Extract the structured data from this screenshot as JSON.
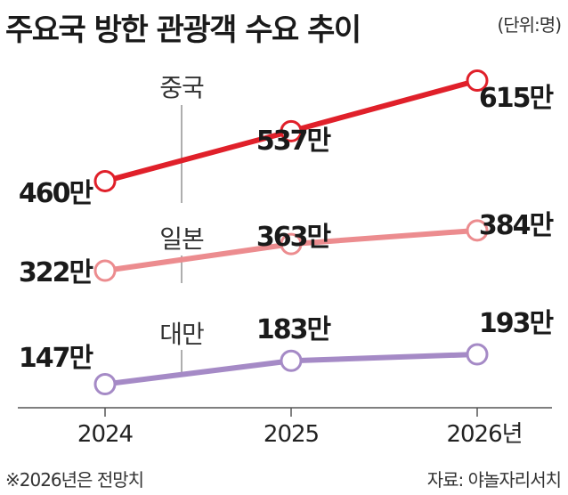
{
  "title": "주요국 방한 관광객 수요 추이",
  "unit_note": "(단위:명)",
  "footnote": "※2026년은 전망치",
  "source": "자료: 야놀자리서치",
  "colors": {
    "china": "#e0202a",
    "japan": "#ec8c8f",
    "taiwan": "#a58ac6",
    "axis": "#555555",
    "text": "#1a1a1a"
  },
  "chart_data": {
    "type": "line",
    "title": "주요국 방한 관광객 수요 추이",
    "categories": [
      "2024",
      "2025",
      "2026년"
    ],
    "series": [
      {
        "name": "중국",
        "values": [
          460,
          537,
          615
        ],
        "labels": [
          "460만",
          "537만",
          "615만"
        ]
      },
      {
        "name": "일본",
        "values": [
          322,
          363,
          384
        ],
        "labels": [
          "322만",
          "363만",
          "384만"
        ]
      },
      {
        "name": "대만",
        "values": [
          147,
          183,
          193
        ],
        "labels": [
          "147만",
          "183만",
          "193만"
        ]
      }
    ],
    "ylabel": "",
    "xlabel": "",
    "grid": false,
    "legend": "inline labels with leader lines"
  }
}
